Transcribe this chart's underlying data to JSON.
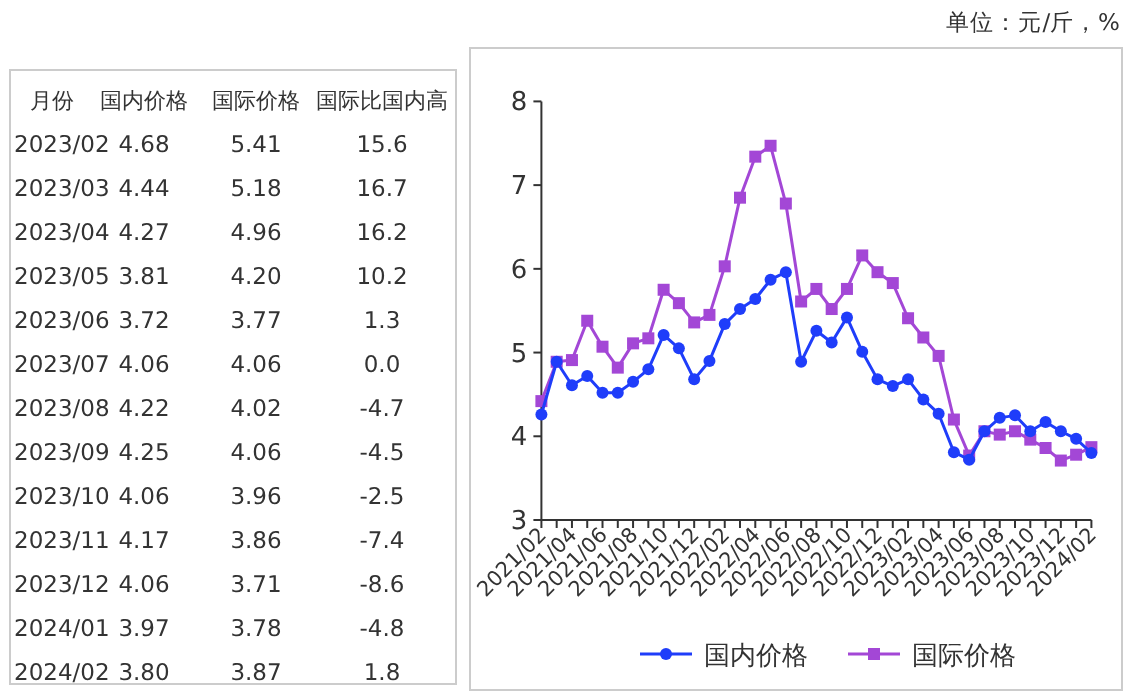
{
  "chart_data": [
    {
      "type": "other",
      "xlabel": "月份",
      "categories": [
        "2023/02",
        "2023/03",
        "2023/04",
        "2023/05",
        "2023/06",
        "2023/07",
        "2023/08",
        "2023/09",
        "2023/10",
        "2023/11",
        "2023/12",
        "2024/01",
        "2024/02"
      ],
      "series": [
        {
          "name": "国内价格",
          "values": [
            4.68,
            4.44,
            4.27,
            3.81,
            3.72,
            4.06,
            4.22,
            4.25,
            4.06,
            4.17,
            4.06,
            3.97,
            3.8
          ],
          "value_labels": [
            "4.68",
            "4.44",
            "4.27",
            "3.81",
            "3.72",
            "4.06",
            "4.22",
            "4.25",
            "4.06",
            "4.17",
            "4.06",
            "3.97",
            "3.80"
          ]
        },
        {
          "name": "国际价格",
          "values": [
            5.41,
            5.18,
            4.96,
            4.2,
            3.77,
            4.06,
            4.02,
            4.06,
            3.96,
            3.86,
            3.71,
            3.78,
            3.87
          ],
          "value_labels": [
            "5.41",
            "5.18",
            "4.96",
            "4.20",
            "3.77",
            "4.06",
            "4.02",
            "4.06",
            "3.96",
            "3.86",
            "3.71",
            "3.78",
            "3.87"
          ]
        },
        {
          "name": "国际比国内高",
          "values": [
            15.6,
            16.7,
            16.2,
            10.2,
            1.3,
            0.0,
            -4.7,
            -4.5,
            -2.5,
            -7.4,
            -8.6,
            -4.8,
            1.8
          ],
          "value_labels": [
            "15.6",
            "16.7",
            "16.2",
            "10.2",
            "1.3",
            "0.0",
            "-4.7",
            "-4.5",
            "-2.5",
            "-7.4",
            "-8.6",
            "-4.8",
            "1.8"
          ]
        }
      ]
    },
    {
      "type": "line",
      "annotations": [
        "单位：元/斤，%"
      ],
      "categories": [
        "2021/02",
        null,
        "2021/04",
        null,
        "2021/06",
        null,
        "2021/08",
        null,
        "2021/10",
        null,
        "2021/12",
        null,
        "2022/02",
        null,
        "2022/04",
        null,
        "2022/06",
        null,
        "2022/08",
        null,
        "2022/10",
        null,
        "2022/12",
        null,
        "2023/02",
        null,
        "2023/04",
        null,
        "2023/06",
        null,
        "2023/08",
        null,
        "2023/10",
        null,
        "2023/12",
        null,
        "2024/02"
      ],
      "series": [
        {
          "name": "国内价格",
          "color": "#1f3dfa",
          "marker": "circle",
          "values": [
            4.26,
            4.89,
            4.61,
            4.72,
            4.52,
            4.52,
            4.65,
            4.8,
            5.21,
            5.05,
            4.68,
            4.9,
            5.34,
            5.52,
            5.64,
            5.87,
            5.96,
            4.89,
            5.26,
            5.12,
            5.42,
            5.01,
            4.68,
            4.6,
            4.68,
            4.44,
            4.27,
            3.81,
            3.72,
            4.06,
            4.22,
            4.25,
            4.06,
            4.17,
            4.06,
            3.97,
            3.8
          ]
        },
        {
          "name": "国际价格",
          "color": "#a347d6",
          "marker": "square",
          "values": [
            4.42,
            4.89,
            4.91,
            5.38,
            5.07,
            4.82,
            5.11,
            5.17,
            5.75,
            5.59,
            5.36,
            5.45,
            6.03,
            6.85,
            7.34,
            7.47,
            6.78,
            5.61,
            5.76,
            5.52,
            5.76,
            6.16,
            5.96,
            5.83,
            5.41,
            5.18,
            4.96,
            4.2,
            3.77,
            4.06,
            4.02,
            4.06,
            3.96,
            3.86,
            3.71,
            3.78,
            3.87
          ]
        }
      ],
      "ylim": [
        3,
        8
      ],
      "yticks": [
        3,
        4,
        5,
        6,
        7,
        8
      ],
      "legend": "bottom"
    }
  ]
}
